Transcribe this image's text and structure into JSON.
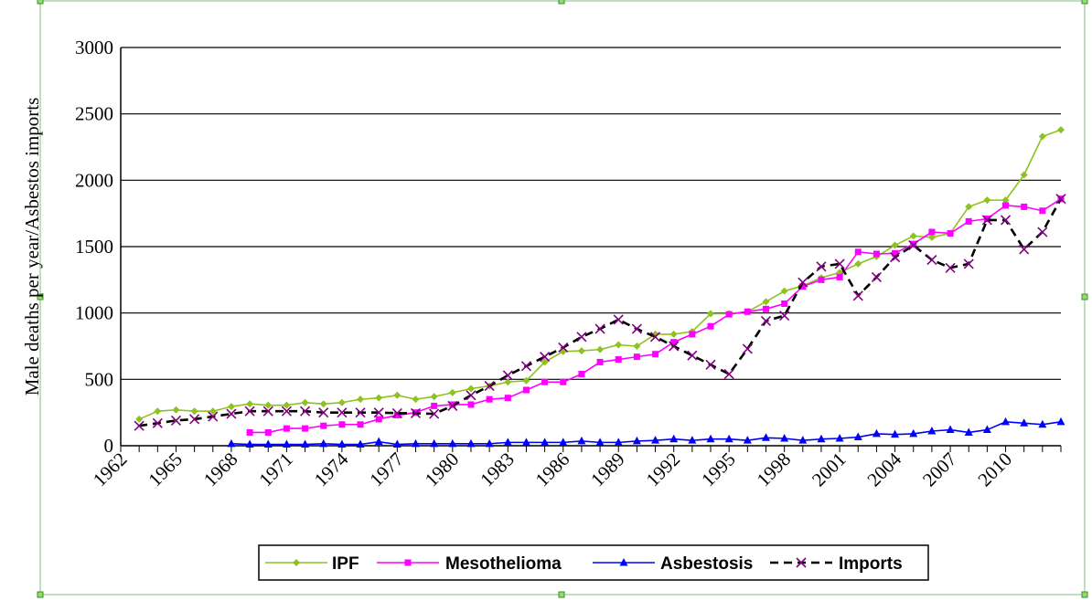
{
  "chart_data": {
    "type": "line",
    "title": "",
    "xlabel": "",
    "ylabel": "Male deaths per year/Asbestos imports",
    "ylim": [
      0,
      3000
    ],
    "xlim": [
      1962,
      2013
    ],
    "y_ticks": [
      "0",
      "500",
      "1000",
      "1500",
      "2000",
      "2500",
      "3000"
    ],
    "y_tick_values": [
      0,
      500,
      1000,
      1500,
      2000,
      2500,
      3000
    ],
    "x_ticks": [
      "1962",
      "1965",
      "1968",
      "1971",
      "1974",
      "1977",
      "1980",
      "1983",
      "1986",
      "1989",
      "1992",
      "1995",
      "1998",
      "2001",
      "2004",
      "2007",
      "2010"
    ],
    "x_tick_values": [
      1962,
      1965,
      1968,
      1971,
      1974,
      1977,
      1980,
      1983,
      1986,
      1989,
      1992,
      1995,
      1998,
      2001,
      2004,
      2007,
      2010
    ],
    "grid": "horizontal",
    "legend_position": "bottom",
    "series": [
      {
        "name": "IPF",
        "color": "#8DC21F",
        "marker": "diamond",
        "line_style": "solid",
        "x": [
          1963,
          1964,
          1965,
          1966,
          1967,
          1968,
          1969,
          1970,
          1971,
          1972,
          1973,
          1974,
          1975,
          1976,
          1977,
          1978,
          1979,
          1980,
          1981,
          1982,
          1983,
          1984,
          1985,
          1986,
          1987,
          1988,
          1989,
          1990,
          1991,
          1992,
          1993,
          1994,
          1995,
          1996,
          1997,
          1998,
          1999,
          2000,
          2001,
          2002,
          2003,
          2004,
          2005,
          2006,
          2007,
          2008,
          2009,
          2010,
          2011,
          2012,
          2013
        ],
        "values": [
          200,
          260,
          270,
          260,
          260,
          295,
          315,
          305,
          305,
          325,
          315,
          325,
          350,
          360,
          380,
          350,
          370,
          400,
          430,
          450,
          480,
          490,
          630,
          710,
          715,
          725,
          760,
          750,
          840,
          840,
          860,
          995,
          995,
          1010,
          1085,
          1165,
          1205,
          1265,
          1305,
          1370,
          1425,
          1510,
          1580,
          1570,
          1600,
          1800,
          1850,
          1850,
          2040,
          2330,
          2380
        ]
      },
      {
        "name": "Mesothelioma",
        "color": "#FF00FF",
        "marker": "square",
        "line_style": "solid",
        "x": [
          1969,
          1970,
          1971,
          1972,
          1973,
          1974,
          1975,
          1976,
          1977,
          1978,
          1979,
          1980,
          1981,
          1982,
          1983,
          1984,
          1985,
          1986,
          1987,
          1988,
          1989,
          1990,
          1991,
          1992,
          1993,
          1994,
          1995,
          1996,
          1997,
          1998,
          1999,
          2000,
          2001,
          2002,
          2003,
          2004,
          2005,
          2006,
          2007,
          2008,
          2009,
          2010,
          2011,
          2012,
          2013
        ],
        "values": [
          100,
          100,
          130,
          130,
          150,
          160,
          160,
          200,
          230,
          250,
          300,
          310,
          310,
          350,
          360,
          420,
          480,
          480,
          540,
          630,
          650,
          670,
          690,
          780,
          840,
          900,
          990,
          1010,
          1030,
          1070,
          1200,
          1250,
          1270,
          1460,
          1445,
          1450,
          1520,
          1610,
          1600,
          1690,
          1710,
          1810,
          1800,
          1770,
          1860
        ]
      },
      {
        "name": "Asbestosis",
        "color": "#0000FF",
        "marker": "triangle",
        "line_style": "solid",
        "x": [
          1968,
          1969,
          1970,
          1971,
          1972,
          1973,
          1974,
          1975,
          1976,
          1977,
          1978,
          1979,
          1980,
          1981,
          1982,
          1983,
          1984,
          1985,
          1986,
          1987,
          1988,
          1989,
          1990,
          1991,
          1992,
          1993,
          1994,
          1995,
          1996,
          1997,
          1998,
          1999,
          2000,
          2001,
          2002,
          2003,
          2004,
          2005,
          2006,
          2007,
          2008,
          2009,
          2010,
          2011,
          2012,
          2013
        ],
        "values": [
          15,
          10,
          10,
          10,
          10,
          15,
          10,
          10,
          30,
          10,
          15,
          15,
          15,
          15,
          15,
          25,
          25,
          25,
          25,
          35,
          25,
          25,
          35,
          40,
          50,
          40,
          50,
          50,
          40,
          60,
          55,
          40,
          50,
          55,
          65,
          90,
          85,
          90,
          110,
          120,
          100,
          120,
          180,
          170,
          160,
          180
        ]
      },
      {
        "name": "Imports",
        "color": "#000000",
        "marker_color": "#800080",
        "marker": "x",
        "line_style": "dashed",
        "x": [
          1963,
          1964,
          1965,
          1966,
          1967,
          1968,
          1969,
          1970,
          1971,
          1972,
          1973,
          1974,
          1975,
          1976,
          1977,
          1978,
          1979,
          1980,
          1981,
          1982,
          1983,
          1984,
          1985,
          1986,
          1987,
          1988,
          1989,
          1990,
          1991,
          1992,
          1993,
          1994,
          1995,
          1996,
          1997,
          1998,
          1999,
          2000,
          2001,
          2002,
          2003,
          2004,
          2005,
          2006,
          2007,
          2008,
          2009,
          2010,
          2011,
          2012,
          2013
        ],
        "values": [
          150,
          170,
          190,
          200,
          220,
          240,
          260,
          260,
          260,
          260,
          250,
          250,
          250,
          250,
          245,
          245,
          240,
          300,
          380,
          450,
          530,
          600,
          670,
          740,
          820,
          880,
          950,
          880,
          820,
          750,
          680,
          610,
          540,
          730,
          940,
          980,
          1230,
          1350,
          1370,
          1130,
          1270,
          1420,
          1510,
          1400,
          1340,
          1370,
          1700,
          1700,
          1480,
          1610,
          1860
        ]
      }
    ]
  }
}
